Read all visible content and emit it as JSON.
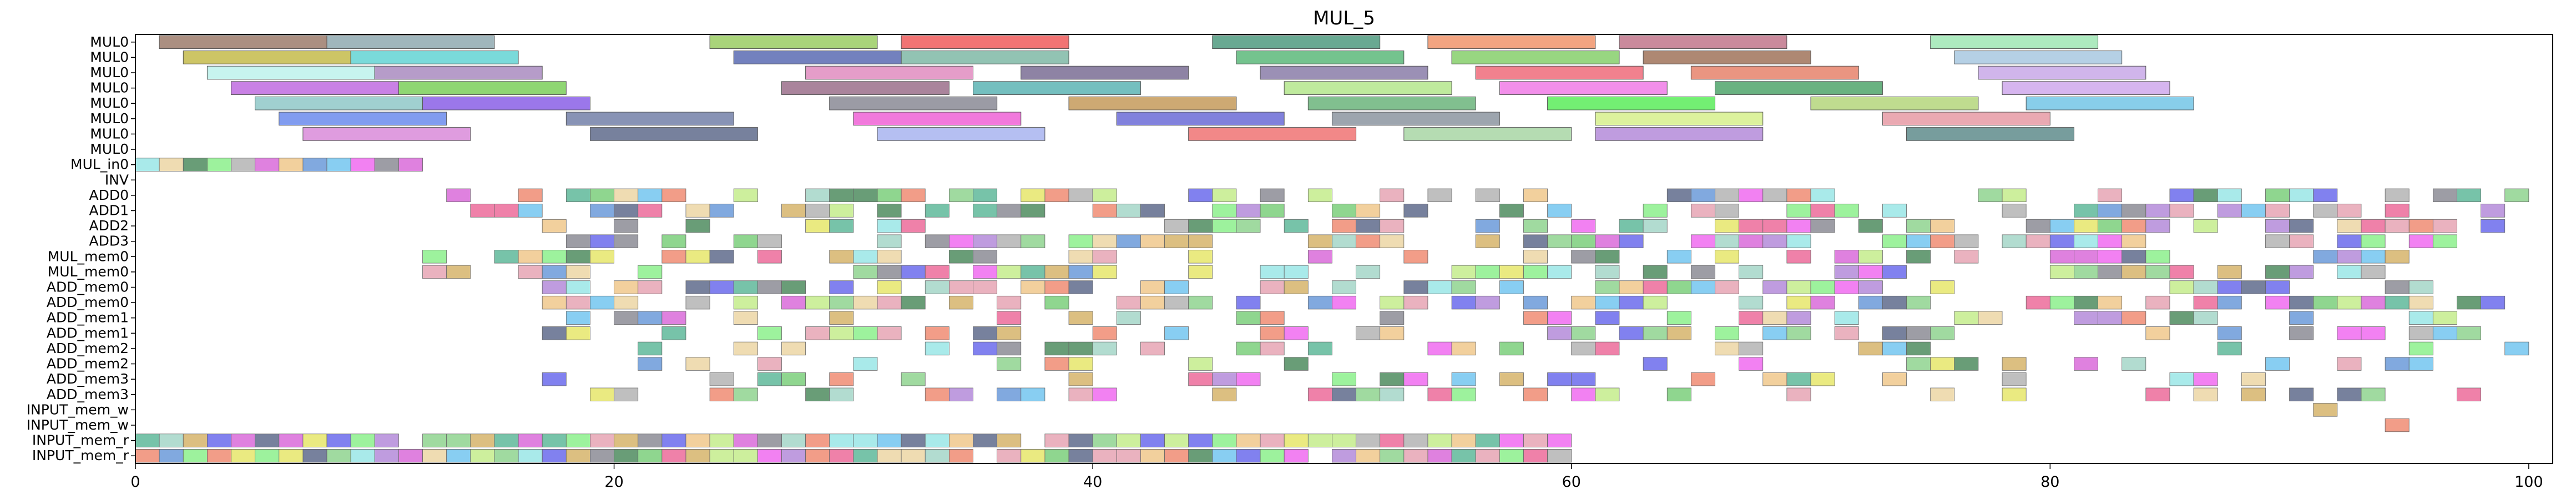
{
  "chart_data": {
    "type": "gantt",
    "title": "MUL_5",
    "xlabel": "",
    "ylabel": "",
    "xlim": [
      0,
      101
    ],
    "xticks": [
      0,
      20,
      40,
      60,
      80,
      100
    ],
    "grid": false,
    "legend": "none",
    "rows": [
      "MUL0",
      "MUL0",
      "MUL0",
      "MUL0",
      "MUL0",
      "MUL0",
      "MUL0",
      "MUL0",
      "MUL_in0",
      "INV",
      "ADD0",
      "ADD1",
      "ADD2",
      "ADD3",
      "MUL_mem0",
      "MUL_mem0",
      "ADD_mem0",
      "ADD_mem0",
      "ADD_mem1",
      "ADD_mem1",
      "ADD_mem2",
      "ADD_mem2",
      "ADD_mem3",
      "ADD_mem3",
      "INPUT_mem_w",
      "INPUT_mem_w",
      "INPUT_mem_r",
      "INPUT_mem_r"
    ],
    "long_tasks": [
      {
        "row": 0,
        "x": 1,
        "d": 7,
        "c": "#9c7b6b"
      },
      {
        "row": 0,
        "x": 8,
        "d": 7,
        "c": "#8fa9b0"
      },
      {
        "row": 0,
        "x": 24,
        "d": 7,
        "c": "#9acd63"
      },
      {
        "row": 0,
        "x": 32,
        "d": 7,
        "c": "#ef5b5b"
      },
      {
        "row": 0,
        "x": 45,
        "d": 7,
        "c": "#4f9a7f"
      },
      {
        "row": 0,
        "x": 54,
        "d": 7,
        "c": "#f0946b"
      },
      {
        "row": 0,
        "x": 62,
        "d": 7,
        "c": "#c1768b"
      },
      {
        "row": 0,
        "x": 75,
        "d": 7,
        "c": "#9fe6b4"
      },
      {
        "row": 1,
        "x": 2,
        "d": 7,
        "c": "#c4bb4b"
      },
      {
        "row": 1,
        "x": 9,
        "d": 7,
        "c": "#63d3d3"
      },
      {
        "row": 1,
        "x": 25,
        "d": 7,
        "c": "#5a6bb3"
      },
      {
        "row": 1,
        "x": 32,
        "d": 7,
        "c": "#7fb8a6"
      },
      {
        "row": 1,
        "x": 46,
        "d": 7,
        "c": "#5cb87a"
      },
      {
        "row": 1,
        "x": 55,
        "d": 7,
        "c": "#86cf6b"
      },
      {
        "row": 1,
        "x": 63,
        "d": 7,
        "c": "#a0735a"
      },
      {
        "row": 1,
        "x": 76,
        "d": 7,
        "c": "#a8c8e0"
      },
      {
        "row": 2,
        "x": 3,
        "d": 7,
        "c": "#bdf2ec"
      },
      {
        "row": 2,
        "x": 10,
        "d": 7,
        "c": "#a98bc0"
      },
      {
        "row": 2,
        "x": 28,
        "d": 7,
        "c": "#e08cc0"
      },
      {
        "row": 2,
        "x": 37,
        "d": 7,
        "c": "#7a6d94"
      },
      {
        "row": 2,
        "x": 47,
        "d": 7,
        "c": "#8a7da8"
      },
      {
        "row": 2,
        "x": 56,
        "d": 7,
        "c": "#ee6b7a"
      },
      {
        "row": 2,
        "x": 65,
        "d": 7,
        "c": "#e6826b"
      },
      {
        "row": 2,
        "x": 77,
        "d": 7,
        "c": "#c8a8e8"
      },
      {
        "row": 3,
        "x": 4,
        "d": 7,
        "c": "#c06be0"
      },
      {
        "row": 3,
        "x": 11,
        "d": 7,
        "c": "#7bcf5b"
      },
      {
        "row": 3,
        "x": 27,
        "d": 7,
        "c": "#9b6f8b"
      },
      {
        "row": 3,
        "x": 35,
        "d": 7,
        "c": "#5cb4b4"
      },
      {
        "row": 3,
        "x": 48,
        "d": 7,
        "c": "#b4e68c"
      },
      {
        "row": 3,
        "x": 57,
        "d": 7,
        "c": "#f07be6"
      },
      {
        "row": 3,
        "x": 66,
        "d": 7,
        "c": "#4fa46b"
      },
      {
        "row": 3,
        "x": 78,
        "d": 7,
        "c": "#cfa8ec"
      },
      {
        "row": 4,
        "x": 5,
        "d": 7,
        "c": "#8fc8c8"
      },
      {
        "row": 4,
        "x": 12,
        "d": 7,
        "c": "#8a5fe6"
      },
      {
        "row": 4,
        "x": 29,
        "d": 7,
        "c": "#8a8a95"
      },
      {
        "row": 4,
        "x": 39,
        "d": 7,
        "c": "#c49a5b"
      },
      {
        "row": 4,
        "x": 49,
        "d": 7,
        "c": "#6bb47b"
      },
      {
        "row": 4,
        "x": 59,
        "d": 7,
        "c": "#5bec5b"
      },
      {
        "row": 4,
        "x": 70,
        "d": 7,
        "c": "#b4d67b"
      },
      {
        "row": 4,
        "x": 79,
        "d": 7,
        "c": "#73c6e6"
      },
      {
        "row": 5,
        "x": 6,
        "d": 7,
        "c": "#6b8bec"
      },
      {
        "row": 5,
        "x": 18,
        "d": 7,
        "c": "#7380a8"
      },
      {
        "row": 5,
        "x": 30,
        "d": 7,
        "c": "#ee62d6"
      },
      {
        "row": 5,
        "x": 41,
        "d": 7,
        "c": "#6b6bd6"
      },
      {
        "row": 5,
        "x": 50,
        "d": 7,
        "c": "#8c95a0"
      },
      {
        "row": 5,
        "x": 61,
        "d": 7,
        "c": "#d6f08c"
      },
      {
        "row": 5,
        "x": 73,
        "d": 7,
        "c": "#e69aa4"
      },
      {
        "row": 6,
        "x": 7,
        "d": 7,
        "c": "#d98bd9"
      },
      {
        "row": 6,
        "x": 19,
        "d": 7,
        "c": "#5f6b8c"
      },
      {
        "row": 6,
        "x": 31,
        "d": 7,
        "c": "#a8b4f0"
      },
      {
        "row": 6,
        "x": 44,
        "d": 7,
        "c": "#f07373"
      },
      {
        "row": 6,
        "x": 53,
        "d": 7,
        "c": "#a8d6a4"
      },
      {
        "row": 6,
        "x": 61,
        "d": 7,
        "c": "#b48bd9"
      },
      {
        "row": 6,
        "x": 74,
        "d": 7,
        "c": "#5f8c8c"
      }
    ]
  }
}
